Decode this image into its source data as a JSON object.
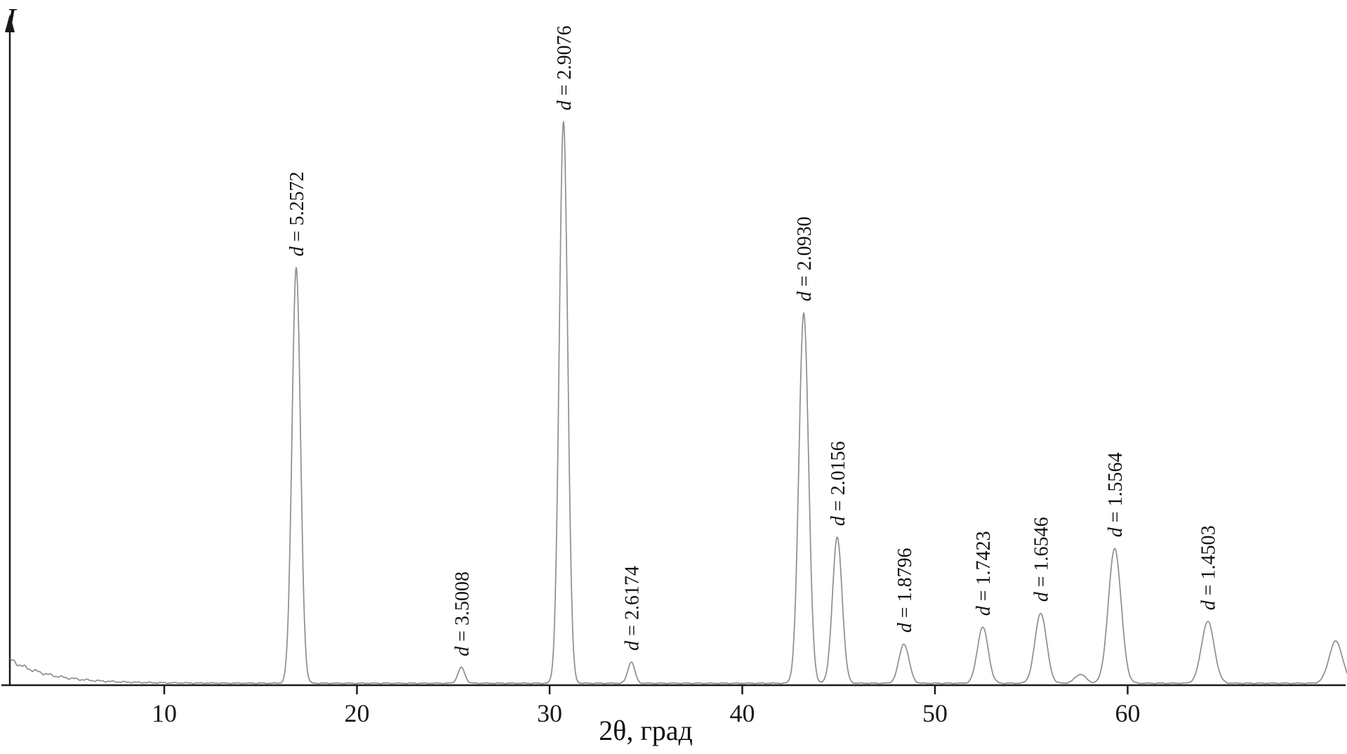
{
  "chart_data": {
    "type": "line",
    "kind": "xrd-diffractogram",
    "title": "",
    "xlabel": "2θ, град",
    "ylabel": "I",
    "xlim": [
      2,
      71.5
    ],
    "ylim": [
      0,
      110
    ],
    "x_ticks": [
      10,
      20,
      30,
      40,
      50,
      60
    ],
    "grid": false,
    "line_color": "#8e8e8e",
    "axis_color": "#1a1a1a",
    "label_color": "#111111",
    "label_prefix": "d = ",
    "peaks": [
      {
        "d": "5.2572",
        "two_theta": 16.85,
        "intensity": 74,
        "width": 0.22,
        "labeled": true
      },
      {
        "d": "3.5008",
        "two_theta": 25.42,
        "intensity": 2.8,
        "width": 0.18,
        "labeled": true
      },
      {
        "d": "2.9076",
        "two_theta": 30.72,
        "intensity": 100,
        "width": 0.22,
        "labeled": true
      },
      {
        "d": "2.6174",
        "two_theta": 34.24,
        "intensity": 3.8,
        "width": 0.18,
        "labeled": true
      },
      {
        "d": "2.0930",
        "two_theta": 43.19,
        "intensity": 66,
        "width": 0.25,
        "labeled": true
      },
      {
        "d": "2.0156",
        "two_theta": 44.93,
        "intensity": 26,
        "width": 0.25,
        "labeled": true
      },
      {
        "d": "1.8796",
        "two_theta": 48.39,
        "intensity": 7,
        "width": 0.26,
        "labeled": true
      },
      {
        "d": "1.7423",
        "two_theta": 52.48,
        "intensity": 10,
        "width": 0.28,
        "labeled": true
      },
      {
        "d": "1.6546",
        "two_theta": 55.49,
        "intensity": 12.5,
        "width": 0.3,
        "labeled": true
      },
      {
        "d": "",
        "two_theta": 57.55,
        "intensity": 1.6,
        "width": 0.28,
        "labeled": false
      },
      {
        "d": "1.5564",
        "two_theta": 59.33,
        "intensity": 24,
        "width": 0.33,
        "labeled": true
      },
      {
        "d": "1.4503",
        "two_theta": 64.16,
        "intensity": 11,
        "width": 0.33,
        "labeled": true
      },
      {
        "d": "",
        "two_theta": 70.8,
        "intensity": 7.5,
        "width": 0.35,
        "labeled": false
      }
    ],
    "background": {
      "amplitude": 4.2,
      "decay": 2.0,
      "floor": 0.35
    }
  }
}
